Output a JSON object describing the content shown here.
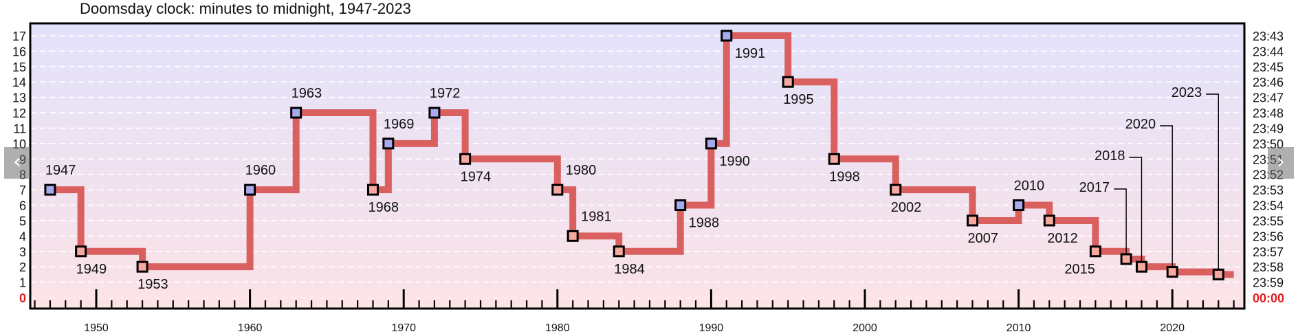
{
  "title": "Doomsday clock: minutes to midnight, 1947-2023",
  "nav": {
    "prev_icon": "chevron-left-icon",
    "next_icon": "chevron-right-icon",
    "prev_glyph": "‹",
    "next_glyph": "›"
  },
  "colors": {
    "line": "#d9605f",
    "marker_moved_closer": "#f7a8a0",
    "marker_moved_away": "#a9a9ee",
    "midnight": "#e21f1f",
    "band_top": "#e3e2fb",
    "band_bottom": "#fbe2e6"
  },
  "chart_data": {
    "type": "line",
    "step": true,
    "title": "Doomsday clock: minutes to midnight, 1947-2023",
    "xlim": [
      1946,
      2024
    ],
    "ylim": [
      0,
      17
    ],
    "x_ticks": [
      1950,
      1960,
      1970,
      1980,
      1990,
      2000,
      2010,
      2020
    ],
    "y_ticks_left": [
      "0",
      "1",
      "2",
      "3",
      "4",
      "5",
      "6",
      "7",
      "8",
      "9",
      "10",
      "11",
      "12",
      "13",
      "14",
      "15",
      "16",
      "17"
    ],
    "y_ticks_right": [
      "00:00",
      "23:59",
      "23:58",
      "23:57",
      "23:56",
      "23:55",
      "23:54",
      "23:53",
      "23:52",
      "23:51",
      "23:50",
      "23:49",
      "23:48",
      "23:47",
      "23:46",
      "23:45",
      "23:44",
      "23:43"
    ],
    "grid": true,
    "series": [
      {
        "points": [
          {
            "year": 1947,
            "minutes": 7,
            "label": "1947",
            "direction": "away"
          },
          {
            "year": 1949,
            "minutes": 3,
            "label": "1949",
            "direction": "closer"
          },
          {
            "year": 1953,
            "minutes": 2,
            "label": "1953",
            "direction": "closer"
          },
          {
            "year": 1960,
            "minutes": 7,
            "label": "1960",
            "direction": "away"
          },
          {
            "year": 1963,
            "minutes": 12,
            "label": "1963",
            "direction": "away"
          },
          {
            "year": 1968,
            "minutes": 7,
            "label": "1968",
            "direction": "closer"
          },
          {
            "year": 1969,
            "minutes": 10,
            "label": "1969",
            "direction": "away"
          },
          {
            "year": 1972,
            "minutes": 12,
            "label": "1972",
            "direction": "away"
          },
          {
            "year": 1974,
            "minutes": 9,
            "label": "1974",
            "direction": "closer"
          },
          {
            "year": 1980,
            "minutes": 7,
            "label": "1980",
            "direction": "closer"
          },
          {
            "year": 1981,
            "minutes": 4,
            "label": "1981",
            "direction": "closer"
          },
          {
            "year": 1984,
            "minutes": 3,
            "label": "1984",
            "direction": "closer"
          },
          {
            "year": 1988,
            "minutes": 6,
            "label": "1988",
            "direction": "away"
          },
          {
            "year": 1990,
            "minutes": 10,
            "label": "1990",
            "direction": "away"
          },
          {
            "year": 1991,
            "minutes": 17,
            "label": "1991",
            "direction": "away"
          },
          {
            "year": 1995,
            "minutes": 14,
            "label": "1995",
            "direction": "closer"
          },
          {
            "year": 1998,
            "minutes": 9,
            "label": "1998",
            "direction": "closer"
          },
          {
            "year": 2002,
            "minutes": 7,
            "label": "2002",
            "direction": "closer"
          },
          {
            "year": 2007,
            "minutes": 5,
            "label": "2007",
            "direction": "closer"
          },
          {
            "year": 2010,
            "minutes": 6,
            "label": "2010",
            "direction": "away"
          },
          {
            "year": 2012,
            "minutes": 5,
            "label": "2012",
            "direction": "closer"
          },
          {
            "year": 2015,
            "minutes": 3,
            "label": "2015",
            "direction": "closer"
          },
          {
            "year": 2017,
            "minutes": 2.5,
            "label": "2017",
            "direction": "closer"
          },
          {
            "year": 2018,
            "minutes": 2,
            "label": "2018",
            "direction": "closer"
          },
          {
            "year": 2020,
            "minutes": 1.67,
            "label": "2020",
            "direction": "closer"
          },
          {
            "year": 2023,
            "minutes": 1.5,
            "label": "2023",
            "direction": "closer"
          }
        ],
        "end_year": 2024
      }
    ]
  }
}
